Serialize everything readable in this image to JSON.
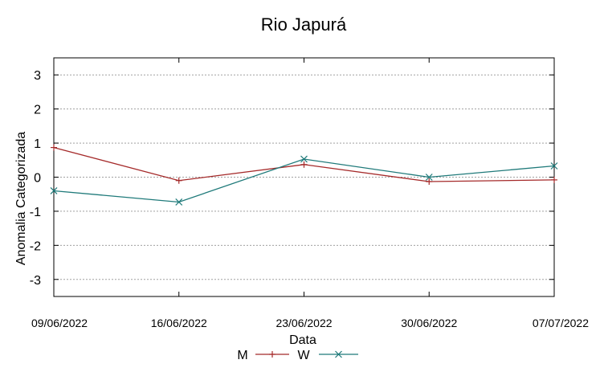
{
  "chart_data": {
    "type": "line",
    "title": "Rio Japurá",
    "xlabel": "Data",
    "ylabel": "Anomalia Categorizada",
    "x": [
      "09/06/2022",
      "16/06/2022",
      "23/06/2022",
      "30/06/2022",
      "07/07/2022"
    ],
    "ylim": [
      -3.5,
      3.5
    ],
    "yticks": [
      3,
      2,
      1,
      0,
      -1,
      -2,
      -3
    ],
    "grid": true,
    "legend_position": "bottom-center",
    "series": [
      {
        "name": "M",
        "values": [
          0.87,
          -0.1,
          0.37,
          -0.13,
          -0.08
        ],
        "color": "#a52a2a",
        "marker": "plus"
      },
      {
        "name": "W",
        "values": [
          -0.4,
          -0.73,
          0.53,
          0.0,
          0.33
        ],
        "color": "#1f7a7a",
        "marker": "cross"
      }
    ]
  }
}
